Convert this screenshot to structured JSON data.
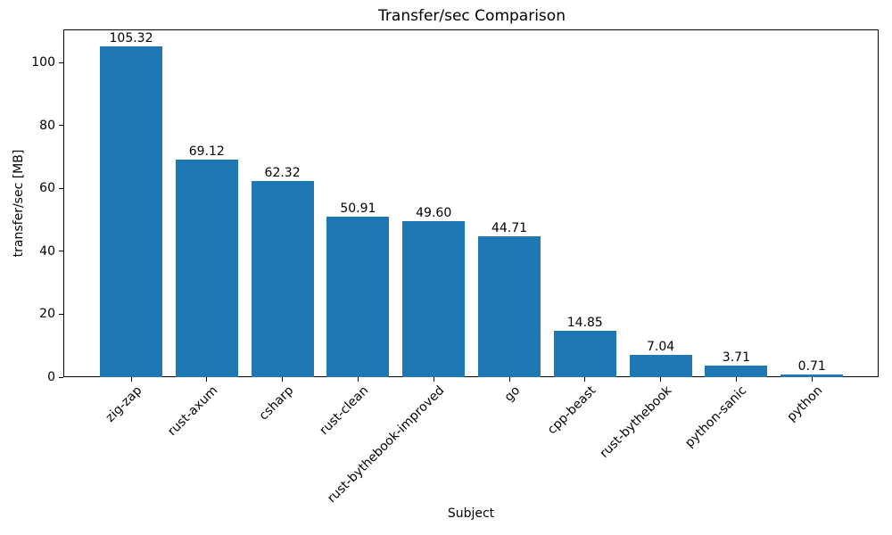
{
  "chart_data": {
    "type": "bar",
    "title": "Transfer/sec Comparison",
    "xlabel": "Subject",
    "ylabel": "transfer/sec [MB]",
    "categories": [
      "zig-zap",
      "rust-axum",
      "csharp",
      "rust-clean",
      "rust-bythebook-improved",
      "go",
      "cpp-beast",
      "rust-bythebook",
      "python-sanic",
      "python"
    ],
    "values": [
      105.32,
      69.12,
      62.32,
      50.91,
      49.6,
      44.71,
      14.85,
      7.04,
      3.71,
      0.71
    ],
    "value_labels": [
      "105.32",
      "69.12",
      "62.32",
      "50.91",
      "49.60",
      "44.71",
      "14.85",
      "7.04",
      "3.71",
      "0.71"
    ],
    "yticks": [
      0,
      20,
      40,
      60,
      80,
      100
    ],
    "ylim": [
      0,
      110.6
    ],
    "bar_color": "#1f77b4",
    "grid": false,
    "legend": null
  }
}
